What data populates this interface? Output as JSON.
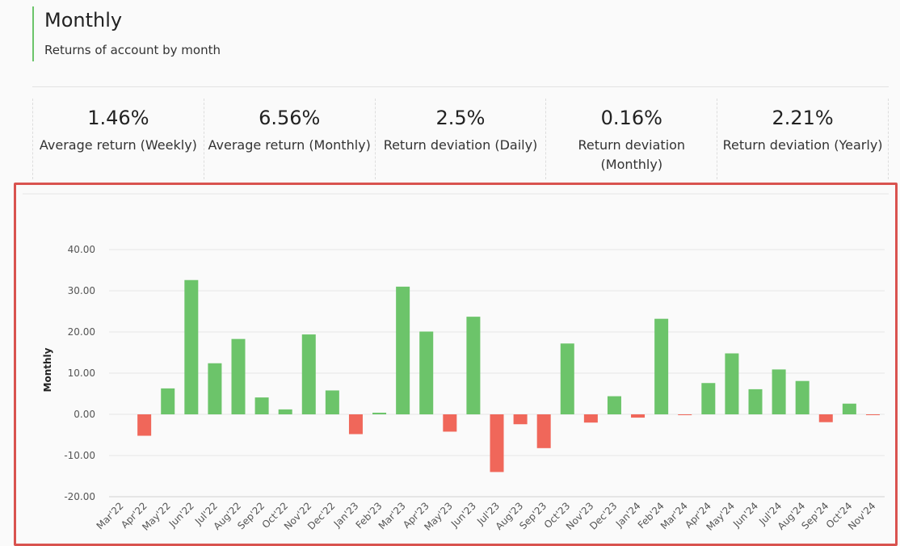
{
  "header": {
    "title": "Monthly",
    "subtitle": "Returns of account by month"
  },
  "stats": [
    {
      "value": "1.46%",
      "label": "Average return (Weekly)"
    },
    {
      "value": "6.56%",
      "label": "Average return (Monthly)"
    },
    {
      "value": "2.5%",
      "label": "Return deviation (Daily)"
    },
    {
      "value": "0.16%",
      "label": "Return deviation (Monthly)"
    },
    {
      "value": "2.21%",
      "label": "Return deviation (Yearly)"
    }
  ],
  "colors": {
    "positive": "#6cc46a",
    "negative": "#f0675a",
    "accent": "#6cc46a",
    "highlight_border": "#d9534f"
  },
  "chart_data": {
    "type": "bar",
    "title": "",
    "xlabel": "",
    "ylabel": "Monthly",
    "ylim": [
      -20,
      40
    ],
    "yticks": [
      40,
      30,
      20,
      10,
      0,
      -10,
      -20
    ],
    "ytick_labels": [
      "40.00",
      "30.00",
      "20.00",
      "10.00",
      "0.00",
      "-10.00",
      "-20.00"
    ],
    "grid": true,
    "categories": [
      "Mar'22",
      "Apr'22",
      "May'22",
      "Jun'22",
      "Jul'22",
      "Aug'22",
      "Sep'22",
      "Oct'22",
      "Nov'22",
      "Dec'22",
      "Jan'23",
      "Feb'23",
      "Mar'23",
      "Apr'23",
      "May'23",
      "Jun'23",
      "Jul'23",
      "Aug'23",
      "Sep'23",
      "Oct'23",
      "Nov'23",
      "Dec'23",
      "Jan'24",
      "Feb'24",
      "Mar'24",
      "Apr'24",
      "May'24",
      "Jun'24",
      "Jul'24",
      "Aug'24",
      "Sep'24",
      "Oct'24",
      "Nov'24"
    ],
    "values": [
      0,
      -5.2,
      6.3,
      32.6,
      12.4,
      18.3,
      4.1,
      1.2,
      19.4,
      5.8,
      -4.8,
      0.4,
      31.0,
      20.1,
      -4.2,
      23.7,
      -14.0,
      -2.4,
      -8.2,
      17.2,
      -2.0,
      4.4,
      -0.8,
      23.2,
      -0.2,
      7.6,
      14.8,
      6.1,
      10.9,
      8.1,
      -1.9,
      2.6,
      -0.1
    ]
  }
}
